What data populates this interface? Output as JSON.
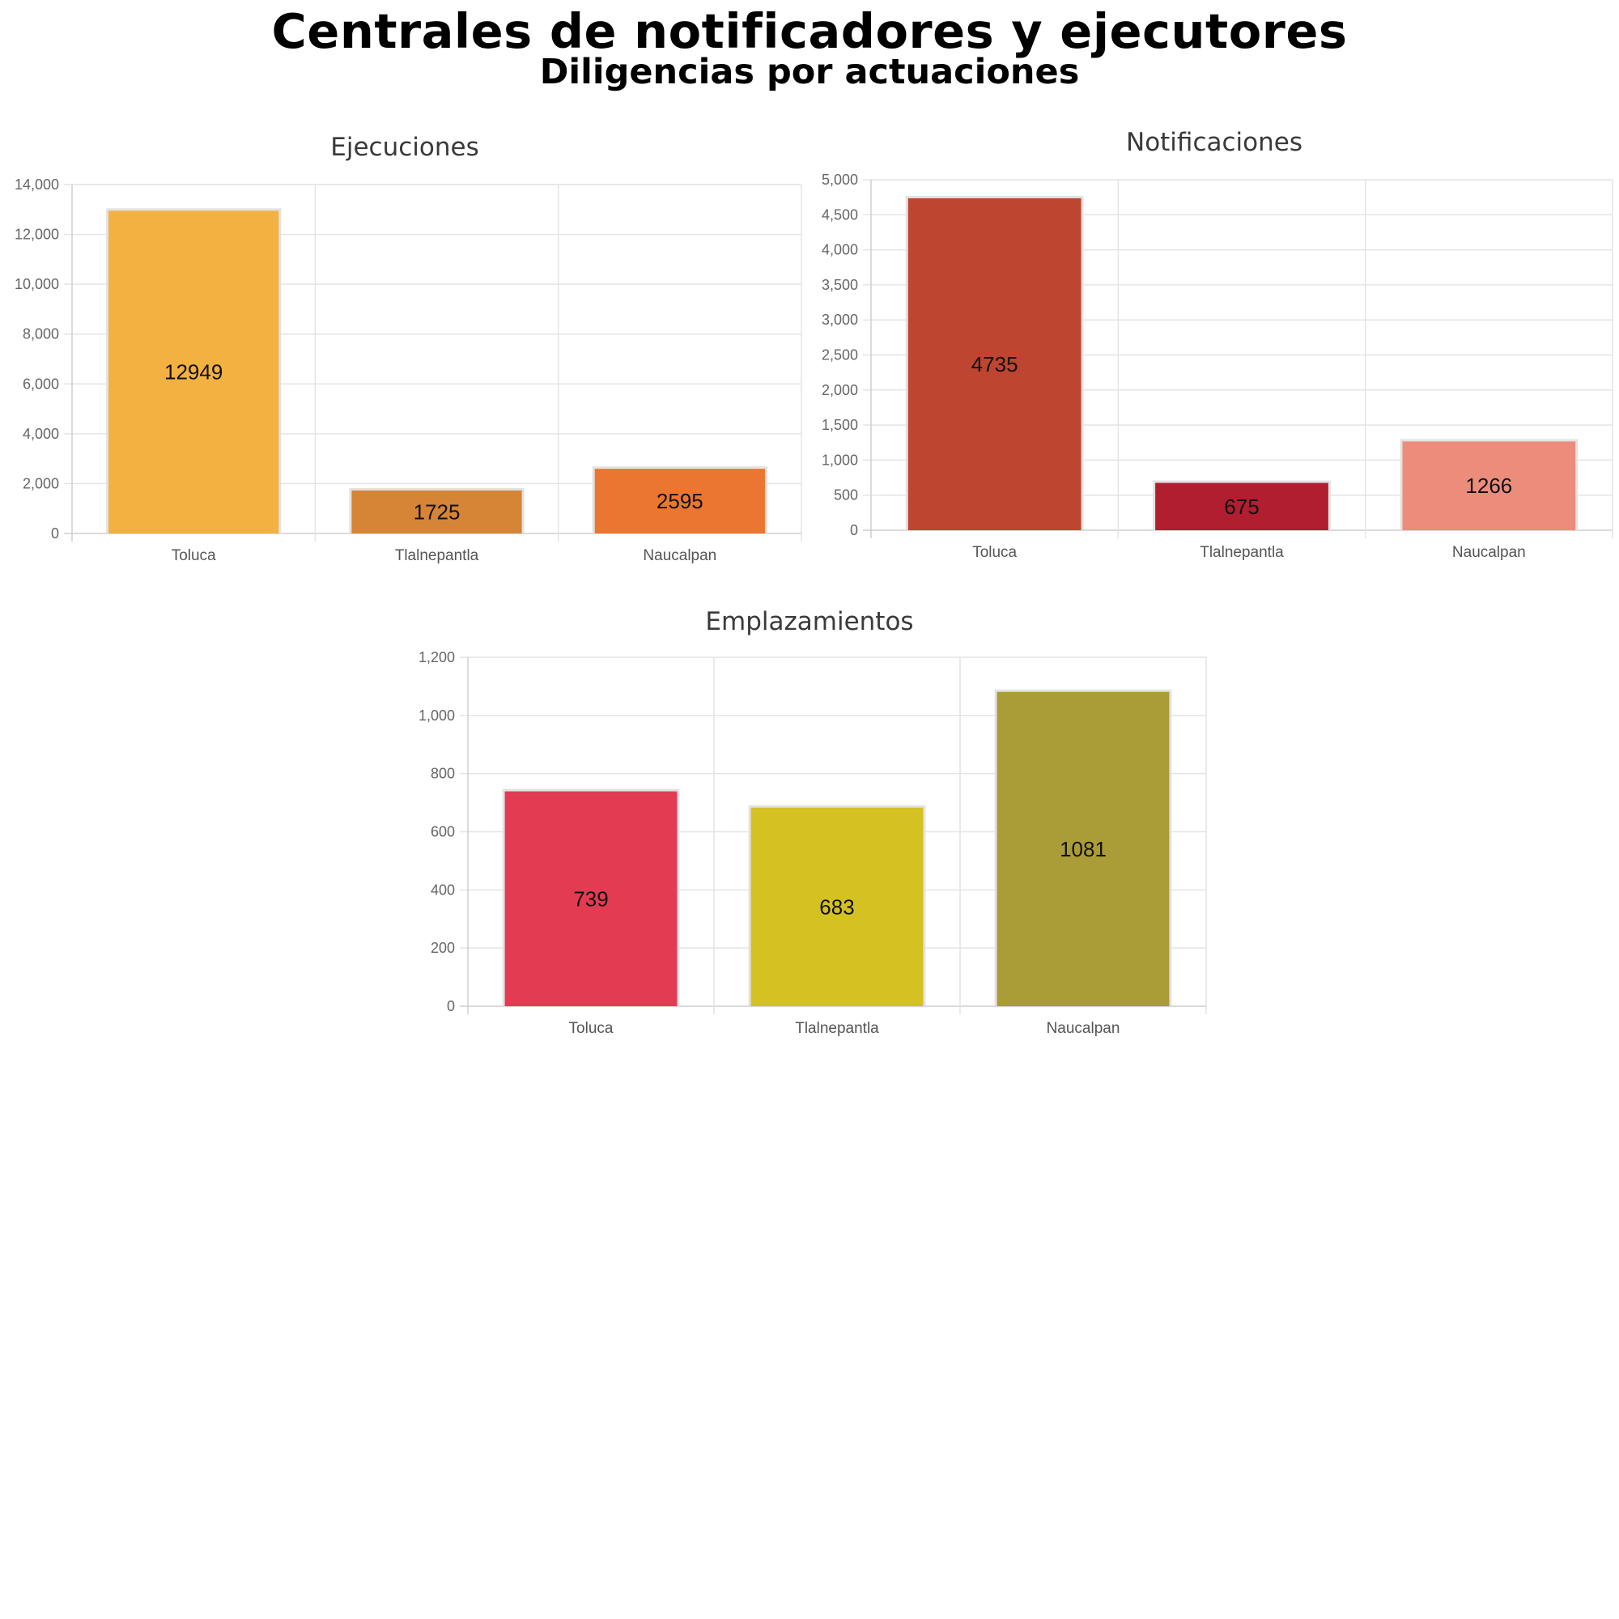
{
  "header": {
    "title": "Centrales de notificadores y ejecutores",
    "subtitle": "Diligencias por actuaciones"
  },
  "chart_data": [
    {
      "type": "bar",
      "title": "Ejecuciones",
      "categories": [
        "Toluca",
        "Tlalnepantla",
        "Naucalpan"
      ],
      "values": [
        12949,
        1725,
        2595
      ],
      "colors": [
        "#F3B141",
        "#D68436",
        "#EB7631"
      ],
      "ylim": [
        0,
        14000
      ],
      "yticks": [
        0,
        2000,
        4000,
        6000,
        8000,
        10000,
        12000,
        14000
      ],
      "xlabel": "",
      "ylabel": "",
      "grid": true
    },
    {
      "type": "bar",
      "title": "Notificaciones",
      "categories": [
        "Toluca",
        "Tlalnepantla",
        "Naucalpan"
      ],
      "values": [
        4735,
        675,
        1266
      ],
      "colors": [
        "#BE4530",
        "#B01E2F",
        "#EC8D7C"
      ],
      "ylim": [
        0,
        5000
      ],
      "yticks": [
        0,
        500,
        1000,
        1500,
        2000,
        2500,
        3000,
        3500,
        4000,
        4500,
        5000
      ],
      "xlabel": "",
      "ylabel": "",
      "grid": true
    },
    {
      "type": "bar",
      "title": "Emplazamientos",
      "categories": [
        "Toluca",
        "Tlalnepantla",
        "Naucalpan"
      ],
      "values": [
        739,
        683,
        1081
      ],
      "colors": [
        "#E33B52",
        "#D4C122",
        "#AA9C36"
      ],
      "ylim": [
        0,
        1200
      ],
      "yticks": [
        0,
        200,
        400,
        600,
        800,
        1000,
        1200
      ],
      "xlabel": "",
      "ylabel": "",
      "grid": true
    }
  ]
}
